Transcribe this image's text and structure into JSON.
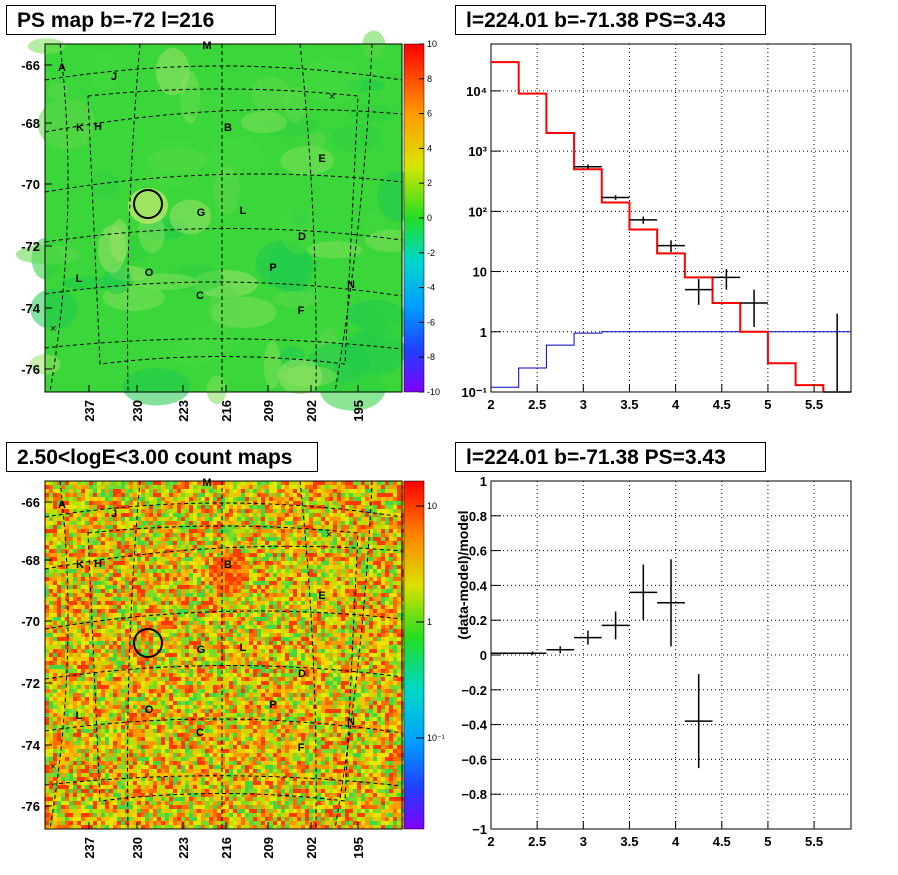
{
  "titles": {
    "ps_map": "PS map b=-72 l=216",
    "spectrum": "l=224.01 b=-71.38 PS=3.43",
    "count_map": "2.50<logE<3.00 count maps",
    "residual": "l=224.01 b=-71.38 PS=3.43"
  },
  "map_axes": {
    "y_ticks": [
      "-66",
      "-68",
      "-70",
      "-72",
      "-74",
      "-76"
    ],
    "x_ticks": [
      "237",
      "230",
      "223",
      "216",
      "209",
      "202",
      "195"
    ]
  },
  "ps_map_colorbar": [
    "10",
    "8",
    "6",
    "4",
    "2",
    "0",
    "-2",
    "-4",
    "-6",
    "-8",
    "-10"
  ],
  "count_colorbar": [
    "10",
    "1",
    "10⁻¹"
  ],
  "region_labels": [
    "A",
    "J",
    "M",
    "K",
    "H",
    "B",
    "E",
    "G",
    "L",
    "D",
    "L",
    "O",
    "P",
    "N",
    "C",
    "F"
  ],
  "colors": {
    "data": "#000000",
    "model": "#ff0000",
    "background": "#0000cc",
    "map_green": "#3ad63a"
  },
  "chart_data": [
    {
      "type": "line",
      "panel": "spectrum",
      "x_scale": "linear",
      "y_scale": "log",
      "xlim": [
        2,
        5.9
      ],
      "ylim": [
        0.1,
        60000
      ],
      "x_ticks": [
        "2",
        "2.5",
        "3",
        "3.5",
        "4",
        "4.5",
        "5",
        "5.5"
      ],
      "y_ticks": [
        "10⁻¹",
        "1",
        "10",
        "10²",
        "10³",
        "10⁴"
      ],
      "grid": true,
      "model_steps": {
        "edges": [
          2.0,
          2.3,
          2.6,
          2.9,
          3.2,
          3.5,
          3.8,
          4.1,
          4.4,
          4.7,
          5.0,
          5.3,
          5.6
        ],
        "values": [
          30000,
          9000,
          2000,
          500,
          140,
          50,
          20,
          8,
          3,
          1,
          0.3,
          0.13
        ]
      },
      "background_steps": {
        "edges": [
          2.0,
          2.3,
          2.6,
          2.9,
          3.2,
          5.9
        ],
        "values": [
          0.12,
          0.25,
          0.6,
          0.95,
          1.0
        ]
      },
      "data_points": [
        {
          "x": 3.05,
          "y": 550,
          "xerr": 0.15,
          "ylo": 500,
          "yhi": 600
        },
        {
          "x": 3.35,
          "y": 170,
          "xerr": 0.15,
          "ylo": 155,
          "yhi": 185
        },
        {
          "x": 3.65,
          "y": 72,
          "xerr": 0.15,
          "ylo": 62,
          "yhi": 82
        },
        {
          "x": 3.95,
          "y": 27,
          "xerr": 0.15,
          "ylo": 21,
          "yhi": 33
        },
        {
          "x": 4.25,
          "y": 5,
          "xerr": 0.15,
          "ylo": 2.8,
          "yhi": 7.5
        },
        {
          "x": 4.55,
          "y": 8,
          "xerr": 0.15,
          "ylo": 5,
          "yhi": 11
        },
        {
          "x": 4.85,
          "y": 3,
          "xerr": 0.15,
          "ylo": 1.2,
          "yhi": 5
        },
        {
          "x": 5.75,
          "y": 0.1,
          "xerr": 0.15,
          "ylo": 0.1,
          "yhi": 2
        }
      ]
    },
    {
      "type": "scatter",
      "panel": "residual",
      "ylabel": "(data-model)/model",
      "xlim": [
        2,
        5.9
      ],
      "ylim": [
        -1,
        1
      ],
      "x_ticks": [
        "2",
        "2.5",
        "3",
        "3.5",
        "4",
        "4.5",
        "5",
        "5.5"
      ],
      "y_ticks": [
        "−1",
        "−0.8",
        "−0.6",
        "−0.4",
        "−0.2",
        "0",
        "0.2",
        "0.4",
        "0.6",
        "0.8",
        "1"
      ],
      "grid": true,
      "data_points": [
        {
          "x": 2.15,
          "y": 0.01,
          "xerr": 0.15,
          "yerr": 0.005
        },
        {
          "x": 2.45,
          "y": 0.01,
          "xerr": 0.15,
          "yerr": 0.01
        },
        {
          "x": 2.75,
          "y": 0.03,
          "xerr": 0.15,
          "yerr": 0.02
        },
        {
          "x": 3.05,
          "y": 0.1,
          "xerr": 0.15,
          "yerr": 0.04
        },
        {
          "x": 3.35,
          "y": 0.17,
          "xerr": 0.15,
          "yerr": 0.08
        },
        {
          "x": 3.65,
          "y": 0.36,
          "xerr": 0.15,
          "yerr": 0.16
        },
        {
          "x": 3.95,
          "y": 0.3,
          "xerr": 0.15,
          "yerr": 0.25
        },
        {
          "x": 4.25,
          "y": -0.38,
          "xerr": 0.15,
          "yerr": 0.27
        }
      ]
    }
  ]
}
